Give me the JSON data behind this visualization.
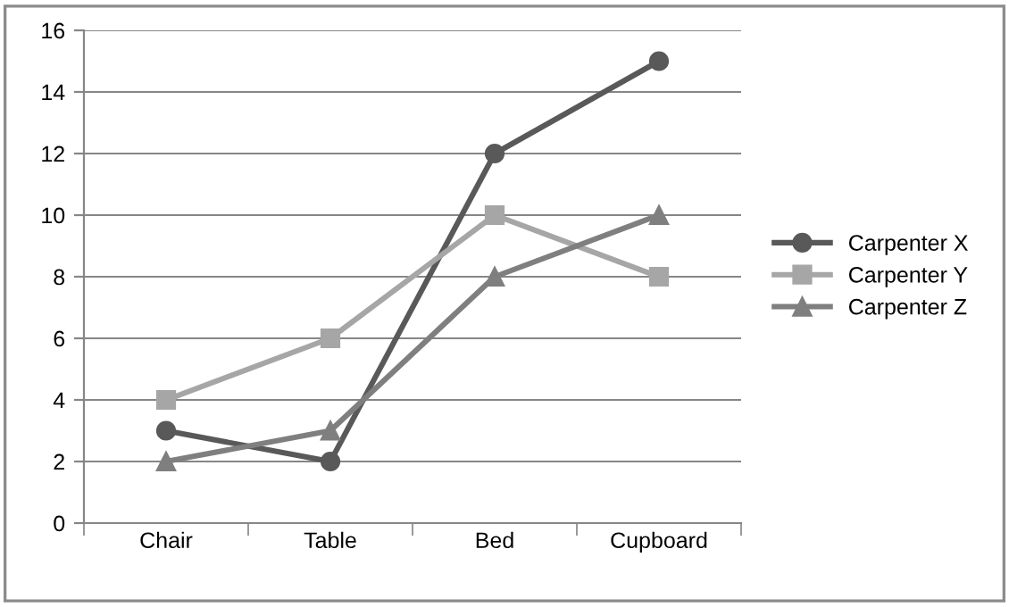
{
  "chart_data": {
    "type": "line",
    "categories": [
      "Chair",
      "Table",
      "Bed",
      "Cupboard"
    ],
    "series": [
      {
        "name": "Carpenter X",
        "color": "#595959",
        "marker": "circle",
        "values": [
          3,
          2,
          12,
          15
        ]
      },
      {
        "name": "Carpenter Y",
        "color": "#a6a6a6",
        "marker": "square",
        "values": [
          4,
          6,
          10,
          8
        ]
      },
      {
        "name": "Carpenter Z",
        "color": "#7f7f7f",
        "marker": "triangle",
        "values": [
          2,
          3,
          8,
          10
        ]
      }
    ],
    "ylim": [
      0,
      16
    ],
    "yticks": [
      0,
      2,
      4,
      6,
      8,
      10,
      12,
      14,
      16
    ],
    "grid": "y",
    "legend": "right",
    "line_style": "solid"
  }
}
